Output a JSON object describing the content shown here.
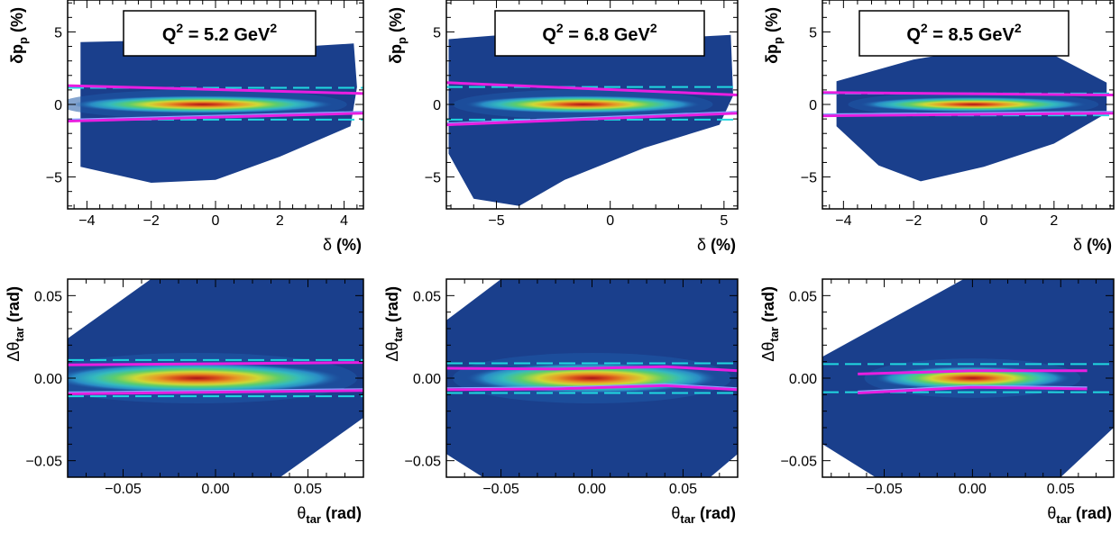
{
  "colors": {
    "fill_low": "#1a3f8c",
    "band_colors": [
      "#1f5aa8",
      "#2a8fc8",
      "#35c0c0",
      "#5fd46a",
      "#d8e030",
      "#f0a020",
      "#e04a14",
      "#b01010"
    ],
    "fit_line": "#e81ee0",
    "cut_line": "#20d8e0",
    "inner_line": "#8ca0ff"
  },
  "chart_data": [
    {
      "type": "heatmap",
      "panel": "top-left",
      "xlabel": [
        "δ",
        " (%)"
      ],
      "ylabel": [
        "δp",
        "p",
        " (%)"
      ],
      "xlim": [
        -4.6,
        4.6
      ],
      "ylim": [
        -7.2,
        7.2
      ],
      "xticks": [
        -4,
        -2,
        0,
        2,
        4
      ],
      "xtick_labels": [
        "−4",
        "−2",
        "0",
        "2",
        "4"
      ],
      "yticks": [
        -5,
        0,
        5
      ],
      "ytick_labels": [
        "−5",
        "0",
        "5"
      ],
      "annotation": {
        "q": "Q",
        "sup1": "2",
        "mid": " = 5.2 GeV",
        "sup2": "2"
      },
      "data_region": [
        [
          -4.2,
          -4.3
        ],
        [
          -2,
          -5.4
        ],
        [
          0,
          -5.2
        ],
        [
          2,
          -3.6
        ],
        [
          4.2,
          -1.5
        ],
        [
          4.4,
          1.2
        ],
        [
          4.3,
          4.2
        ],
        [
          2,
          3.9
        ],
        [
          0,
          4.3
        ],
        [
          -2,
          4.4
        ],
        [
          -4.2,
          4.3
        ]
      ],
      "core": {
        "x0": -3.7,
        "x1": 4.0,
        "cx": -0.4,
        "cy": 0.0,
        "half_height": 0.3
      },
      "cut_lines": [
        1.15,
        -1.05
      ],
      "fit_upper": [
        [
          -4.6,
          1.3
        ],
        [
          4.6,
          0.75
        ]
      ],
      "fit_lower": [
        [
          -4.6,
          -1.15
        ],
        [
          4.6,
          -0.6
        ]
      ]
    },
    {
      "type": "heatmap",
      "panel": "top-middle",
      "xlabel": [
        "δ",
        " (%)"
      ],
      "ylabel": [
        "δp",
        "p",
        " (%)"
      ],
      "xlim": [
        -7.2,
        5.6
      ],
      "ylim": [
        -7.2,
        7.2
      ],
      "xticks": [
        -5,
        0,
        5
      ],
      "xtick_labels": [
        "−5",
        "0",
        "5"
      ],
      "yticks": [
        -5,
        0,
        5
      ],
      "ytick_labels": [
        "−5",
        "0",
        "5"
      ],
      "annotation": {
        "q": "Q",
        "sup1": "2",
        "mid": " = 6.8 GeV",
        "sup2": "2"
      },
      "data_region": [
        [
          -7.1,
          -3.4
        ],
        [
          -6,
          -6.5
        ],
        [
          -4,
          -7.0
        ],
        [
          -2,
          -5.2
        ],
        [
          1.5,
          -3.0
        ],
        [
          4.8,
          -1.4
        ],
        [
          5.4,
          0.6
        ],
        [
          5.3,
          4.8
        ],
        [
          3,
          4.6
        ],
        [
          0,
          5.3
        ],
        [
          -3,
          5.0
        ],
        [
          -7.1,
          4.5
        ]
      ],
      "core": {
        "x0": -5.5,
        "x1": 4.4,
        "cx": -1.2,
        "cy": 0.0,
        "half_height": 0.3
      },
      "cut_lines": [
        1.2,
        -1.05
      ],
      "fit_upper": [
        [
          -7.2,
          1.5
        ],
        [
          5.6,
          0.65
        ]
      ],
      "fit_lower": [
        [
          -7.2,
          -1.4
        ],
        [
          5.6,
          -0.6
        ]
      ]
    },
    {
      "type": "heatmap",
      "panel": "top-right",
      "xlabel": [
        "δ",
        " (%)"
      ],
      "ylabel": [
        "δp",
        "p",
        " (%)"
      ],
      "xlim": [
        -4.6,
        3.7
      ],
      "ylim": [
        -7.2,
        7.2
      ],
      "xticks": [
        -4,
        -2,
        0,
        2
      ],
      "xtick_labels": [
        "−4",
        "−2",
        "0",
        "2"
      ],
      "yticks": [
        -5,
        0,
        5
      ],
      "ytick_labels": [
        "−5",
        "0",
        "5"
      ],
      "annotation": {
        "q": "Q",
        "sup1": "2",
        "mid": " = 8.5 GeV",
        "sup2": "2"
      },
      "data_region": [
        [
          -4.2,
          -1.5
        ],
        [
          -3,
          -4.2
        ],
        [
          -1.8,
          -5.3
        ],
        [
          0,
          -4.3
        ],
        [
          2,
          -2.7
        ],
        [
          3.5,
          -0.6
        ],
        [
          3.5,
          1.5
        ],
        [
          2,
          3.4
        ],
        [
          0,
          3.9
        ],
        [
          -2,
          3.1
        ],
        [
          -4.2,
          1.6
        ]
      ],
      "core": {
        "x0": -3.4,
        "x1": 3.2,
        "cx": -0.3,
        "cy": 0.0,
        "half_height": 0.25
      },
      "cut_lines": [
        0.75,
        -0.75
      ],
      "fit_upper": [
        [
          -4.6,
          0.82
        ],
        [
          3.7,
          0.65
        ]
      ],
      "fit_lower": [
        [
          -4.6,
          -0.78
        ],
        [
          3.7,
          -0.6
        ]
      ]
    },
    {
      "type": "heatmap",
      "panel": "bottom-left",
      "xlabel": [
        "θ",
        "tar",
        " (rad)"
      ],
      "ylabel": [
        "Δθ",
        "tar",
        " (rad)"
      ],
      "xlim": [
        -0.08,
        0.08
      ],
      "ylim": [
        -0.06,
        0.06
      ],
      "xticks": [
        -0.05,
        0.0,
        0.05
      ],
      "xtick_labels": [
        "−0.05",
        "0.00",
        "0.05"
      ],
      "yticks": [
        -0.05,
        0.0,
        0.05
      ],
      "ytick_labels": [
        "−0.05",
        "0.00",
        "0.05"
      ],
      "data_region": [
        [
          -0.08,
          -0.06
        ],
        [
          0.035,
          -0.06
        ],
        [
          0.08,
          -0.024
        ],
        [
          0.08,
          0.06
        ],
        [
          -0.035,
          0.06
        ],
        [
          -0.08,
          0.024
        ]
      ],
      "core": {
        "x0": -0.07,
        "x1": 0.075,
        "cx": -0.01,
        "cy": 0.0,
        "half_height": 0.0045
      },
      "cut_lines": [
        0.011,
        -0.011
      ],
      "fit_upper": [
        [
          -0.08,
          0.008
        ],
        [
          0.08,
          0.0095
        ]
      ],
      "fit_lower": [
        [
          -0.08,
          -0.0095
        ],
        [
          0.08,
          -0.0075
        ]
      ]
    },
    {
      "type": "heatmap",
      "panel": "bottom-middle",
      "xlabel": [
        "θ",
        "tar",
        " (rad)"
      ],
      "ylabel": [
        "Δθ",
        "tar",
        " (rad)"
      ],
      "xlim": [
        -0.08,
        0.08
      ],
      "ylim": [
        -0.06,
        0.06
      ],
      "xticks": [
        -0.05,
        0.0,
        0.05
      ],
      "xtick_labels": [
        "−0.05",
        "0.00",
        "0.05"
      ],
      "yticks": [
        -0.05,
        0.0,
        0.05
      ],
      "ytick_labels": [
        "−0.05",
        "0.00",
        "0.05"
      ],
      "data_region": [
        [
          -0.08,
          -0.046
        ],
        [
          -0.06,
          -0.06
        ],
        [
          0.065,
          -0.06
        ],
        [
          0.08,
          -0.046
        ],
        [
          0.08,
          0.06
        ],
        [
          -0.05,
          0.06
        ],
        [
          -0.08,
          0.035
        ]
      ],
      "core": {
        "x0": -0.07,
        "x1": 0.075,
        "cx": 0.0,
        "cy": 0.0,
        "half_height": 0.0045
      },
      "cut_lines": [
        0.009,
        -0.009
      ],
      "fit_upper": [
        [
          -0.08,
          0.006
        ],
        [
          -0.02,
          0.0055
        ],
        [
          0.04,
          0.007
        ],
        [
          0.08,
          0.0045
        ]
      ],
      "fit_lower": [
        [
          -0.08,
          -0.007
        ],
        [
          -0.02,
          -0.0065
        ],
        [
          0.04,
          -0.0045
        ],
        [
          0.08,
          -0.007
        ]
      ]
    },
    {
      "type": "heatmap",
      "panel": "bottom-right",
      "xlabel": [
        "θ",
        "tar",
        " (rad)"
      ],
      "ylabel": [
        "Δθ",
        "tar",
        " (rad)"
      ],
      "xlim": [
        -0.085,
        0.08
      ],
      "ylim": [
        -0.06,
        0.06
      ],
      "xticks": [
        -0.05,
        0.0,
        0.05
      ],
      "xtick_labels": [
        "−0.05",
        "0.00",
        "0.05"
      ],
      "yticks": [
        -0.05,
        0.0,
        0.05
      ],
      "ytick_labels": [
        "−0.05",
        "0.00",
        "0.05"
      ],
      "data_region": [
        [
          -0.085,
          -0.04
        ],
        [
          -0.055,
          -0.06
        ],
        [
          0.05,
          -0.06
        ],
        [
          0.08,
          -0.03
        ],
        [
          0.08,
          0.06
        ],
        [
          -0.005,
          0.06
        ],
        [
          -0.085,
          0.013
        ]
      ],
      "core": {
        "x0": -0.06,
        "x1": 0.06,
        "cx": 0.0,
        "cy": 0.0,
        "half_height": 0.0035
      },
      "cut_lines": [
        0.0085,
        -0.0085
      ],
      "fit_upper": [
        [
          -0.065,
          0.0025
        ],
        [
          0.0,
          0.0045
        ],
        [
          0.065,
          0.0045
        ]
      ],
      "fit_lower": [
        [
          -0.065,
          -0.009
        ],
        [
          0.0,
          -0.0055
        ],
        [
          0.065,
          -0.0065
        ]
      ]
    }
  ]
}
